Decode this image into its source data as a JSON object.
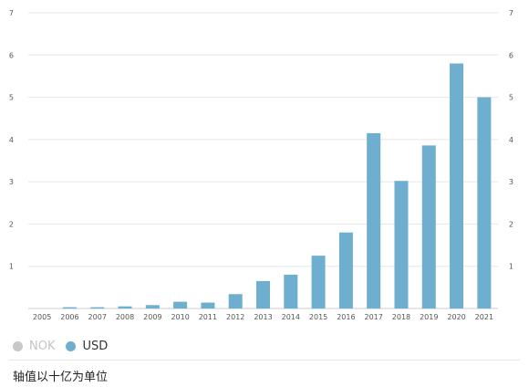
{
  "chart_data": {
    "type": "bar",
    "categories": [
      "2005",
      "2006",
      "2007",
      "2008",
      "2009",
      "2010",
      "2011",
      "2012",
      "2013",
      "2014",
      "2015",
      "2016",
      "2017",
      "2018",
      "2019",
      "2020",
      "2021"
    ],
    "series": [
      {
        "name": "USD",
        "values": [
          0.0,
          0.03,
          0.03,
          0.05,
          0.08,
          0.16,
          0.14,
          0.34,
          0.65,
          0.8,
          1.25,
          1.8,
          4.15,
          3.02,
          3.86,
          5.8,
          5.0
        ]
      }
    ],
    "yticks": [
      "1",
      "2",
      "3",
      "4",
      "5",
      "6",
      "7"
    ],
    "ylim": [
      0,
      7
    ],
    "grid": true,
    "bar_color": "#6eaecf",
    "legend_placement": "bottom-left"
  },
  "legend": [
    {
      "label": "NOK",
      "color": "#c8c8c8",
      "active": false
    },
    {
      "label": "USD",
      "color": "#6eaecf",
      "active": true
    }
  ],
  "footnote": "轴值以十亿为单位"
}
